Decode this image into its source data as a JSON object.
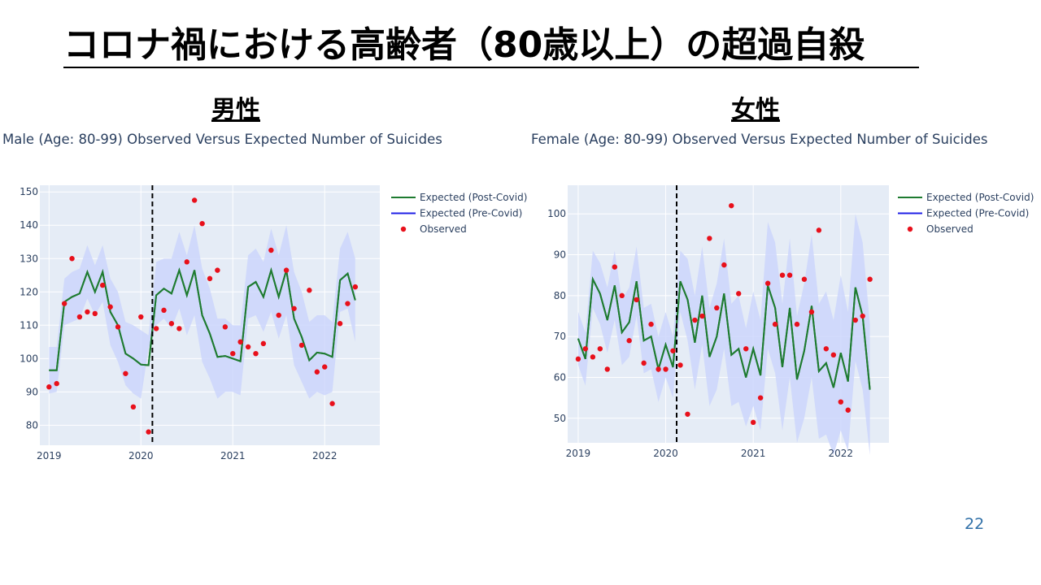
{
  "slide": {
    "title": "コロナ禍における高齢者（80歳以上）の超過自殺",
    "page_number": "22"
  },
  "sections": {
    "male_heading": "男性",
    "female_heading": "女性"
  },
  "colors": {
    "post_covid": "#1e7b30",
    "pre_covid": "#1f1fe6",
    "observed": "#e8101b",
    "band": "#cdd6fb",
    "plot_bg": "#e5ecf6",
    "grid": "#ffffff",
    "text": "#2a3f5f"
  },
  "chart_data": [
    {
      "type": "line",
      "title": "Male (Age: 80-99) Observed Versus Expected Number of Suicides",
      "xlabel": "",
      "ylabel": "",
      "x_range": [
        2018.9,
        2022.6
      ],
      "ylim": [
        74,
        152
      ],
      "x_ticks": [
        2019,
        2020,
        2021,
        2022
      ],
      "y_ticks": [
        80,
        90,
        100,
        110,
        120,
        130,
        140,
        150
      ],
      "cutoff_x": 2020.125,
      "grid": true,
      "legend_position": "right",
      "series": [
        {
          "name": "Expected (Post-Covid)",
          "kind": "line",
          "x": [
            2019,
            2019.083,
            2019.167,
            2019.25,
            2019.333,
            2019.417,
            2019.5,
            2019.583,
            2019.667,
            2019.75,
            2019.833,
            2019.917,
            2020,
            2020.083,
            2020.167,
            2020.25,
            2020.333,
            2020.417,
            2020.5,
            2020.583,
            2020.667,
            2020.75,
            2020.833,
            2020.917,
            2021,
            2021.083,
            2021.167,
            2021.25,
            2021.333,
            2021.417,
            2021.5,
            2021.583,
            2021.667,
            2021.75,
            2021.833,
            2021.917,
            2022,
            2022.083,
            2022.167,
            2022.25,
            2022.333
          ],
          "y": [
            96.5,
            96.5,
            117,
            118.5,
            119.5,
            126,
            120,
            126,
            114,
            110,
            101.5,
            100,
            98.2,
            98,
            119,
            121,
            119.5,
            126.5,
            119,
            126.5,
            113,
            107.5,
            100.5,
            100.8,
            100,
            99.2,
            121.5,
            123,
            118.5,
            126.5,
            118.5,
            126.5,
            112,
            106.5,
            99.5,
            101.8,
            101.5,
            100.5,
            123.5,
            125.5,
            117.5
          ]
        },
        {
          "name": "Expected (Pre-Covid)",
          "kind": "line",
          "x": [
            2019,
            2019.083,
            2019.167,
            2019.25,
            2019.333,
            2019.417,
            2019.5,
            2019.583,
            2019.667,
            2019.75,
            2019.833,
            2019.917,
            2020,
            2020.083
          ],
          "y": [
            96.5,
            96.5,
            117,
            118.5,
            119.5,
            126,
            120,
            126,
            114,
            110,
            101.5,
            100,
            98.2,
            98
          ]
        },
        {
          "name": "Observed",
          "kind": "markers",
          "x": [
            2019,
            2019.083,
            2019.167,
            2019.25,
            2019.333,
            2019.417,
            2019.5,
            2019.583,
            2019.667,
            2019.75,
            2019.833,
            2019.917,
            2020,
            2020.083,
            2020.167,
            2020.25,
            2020.333,
            2020.417,
            2020.5,
            2020.583,
            2020.667,
            2020.75,
            2020.833,
            2020.917,
            2021,
            2021.083,
            2021.167,
            2021.25,
            2021.333,
            2021.417,
            2021.5,
            2021.583,
            2021.667,
            2021.75,
            2021.833,
            2021.917,
            2022,
            2022.083,
            2022.167,
            2022.25,
            2022.333
          ],
          "y": [
            91.5,
            92.5,
            116.5,
            130,
            112.5,
            114,
            113.5,
            122,
            115.5,
            109.5,
            95.5,
            85.5,
            112.5,
            78,
            109,
            114.5,
            110.5,
            109,
            129,
            147.5,
            140.5,
            124,
            126.5,
            109.5,
            101.5,
            105,
            103.5,
            101.5,
            104.5,
            132.5,
            113,
            126.5,
            115,
            104,
            120.5,
            96,
            97.5,
            86.5,
            110.5,
            116.5,
            121.5
          ]
        }
      ],
      "band": {
        "x": [
          2019,
          2019.083,
          2019.167,
          2019.25,
          2019.333,
          2019.417,
          2019.5,
          2019.583,
          2019.667,
          2019.75,
          2019.833,
          2019.917,
          2020,
          2020.083,
          2020.167,
          2020.25,
          2020.333,
          2020.417,
          2020.5,
          2020.583,
          2020.667,
          2020.75,
          2020.833,
          2020.917,
          2021,
          2021.083,
          2021.167,
          2021.25,
          2021.333,
          2021.417,
          2021.5,
          2021.583,
          2021.667,
          2021.75,
          2021.833,
          2021.917,
          2022,
          2022.083,
          2022.167,
          2022.25,
          2022.333
        ],
        "lower": [
          89.5,
          90,
          110,
          111,
          112,
          118,
          113,
          117,
          104,
          99,
          92,
          89.5,
          88,
          103,
          110,
          112,
          109,
          115,
          107,
          113,
          99,
          94,
          88,
          90,
          90,
          89,
          112,
          113,
          108,
          114,
          106,
          113,
          98,
          93,
          88,
          90,
          89,
          90,
          114,
          115,
          105
        ],
        "upper": [
          103.5,
          103.5,
          124,
          126,
          127,
          134,
          128,
          134,
          124,
          120,
          111,
          110,
          108.5,
          107,
          129,
          130,
          130,
          138,
          131,
          140,
          127,
          121,
          112,
          112,
          110,
          110,
          131,
          133,
          129,
          139,
          131,
          140,
          126,
          120,
          111,
          113,
          113,
          111,
          133,
          138,
          130
        ]
      }
    },
    {
      "type": "line",
      "title": "Female (Age: 80-99) Observed Versus Expected Number of Suicides",
      "xlabel": "",
      "ylabel": "",
      "x_range": [
        2018.88,
        2022.55
      ],
      "ylim": [
        44,
        107
      ],
      "x_ticks": [
        2019,
        2020,
        2021,
        2022
      ],
      "y_ticks": [
        50,
        60,
        70,
        80,
        90,
        100
      ],
      "cutoff_x": 2020.125,
      "grid": true,
      "legend_position": "right",
      "series": [
        {
          "name": "Expected (Post-Covid)",
          "kind": "line",
          "x": [
            2019,
            2019.083,
            2019.167,
            2019.25,
            2019.333,
            2019.417,
            2019.5,
            2019.583,
            2019.667,
            2019.75,
            2019.833,
            2019.917,
            2020,
            2020.083,
            2020.167,
            2020.25,
            2020.333,
            2020.417,
            2020.5,
            2020.583,
            2020.667,
            2020.75,
            2020.833,
            2020.917,
            2021,
            2021.083,
            2021.167,
            2021.25,
            2021.333,
            2021.417,
            2021.5,
            2021.583,
            2021.667,
            2021.75,
            2021.833,
            2021.917,
            2022,
            2022.083,
            2022.167,
            2022.25,
            2022.333
          ],
          "y": [
            69.5,
            64.5,
            84,
            80.5,
            74,
            82.5,
            71,
            73.5,
            83.5,
            69,
            70,
            62,
            68,
            62.5,
            83.5,
            79,
            68.5,
            80,
            65,
            70,
            80.5,
            65.5,
            67,
            60,
            67,
            60.5,
            82.5,
            77,
            62.5,
            77,
            59.5,
            66.5,
            77.5,
            61.5,
            63.5,
            57.5,
            66,
            59,
            82,
            75,
            57
          ]
        },
        {
          "name": "Expected (Pre-Covid)",
          "kind": "line",
          "x": [
            2019,
            2019.083,
            2019.167,
            2019.25,
            2019.333,
            2019.417,
            2019.5,
            2019.583,
            2019.667,
            2019.75,
            2019.833,
            2019.917,
            2020,
            2020.083
          ],
          "y": [
            69.5,
            64.5,
            84,
            80.5,
            74,
            82.5,
            71,
            73.5,
            83.5,
            69,
            70,
            62,
            68,
            62.5
          ]
        },
        {
          "name": "Observed",
          "kind": "markers",
          "x": [
            2019,
            2019.083,
            2019.167,
            2019.25,
            2019.333,
            2019.417,
            2019.5,
            2019.583,
            2019.667,
            2019.75,
            2019.833,
            2019.917,
            2020,
            2020.083,
            2020.167,
            2020.25,
            2020.333,
            2020.417,
            2020.5,
            2020.583,
            2020.667,
            2020.75,
            2020.833,
            2020.917,
            2021,
            2021.083,
            2021.167,
            2021.25,
            2021.333,
            2021.417,
            2021.5,
            2021.583,
            2021.667,
            2021.75,
            2021.833,
            2021.917,
            2022,
            2022.083,
            2022.167,
            2022.25,
            2022.333
          ],
          "y": [
            64.5,
            67,
            65,
            67,
            62,
            87,
            80,
            69,
            79,
            63.5,
            73,
            62,
            62,
            66.5,
            63,
            51,
            74,
            75,
            94,
            77,
            87.5,
            102,
            80.5,
            67,
            49,
            55,
            83,
            73,
            85,
            85,
            73,
            84,
            76,
            96,
            67,
            65.5,
            54,
            52,
            74,
            75,
            84
          ]
        }
      ],
      "band": {
        "x": [
          2019,
          2019.083,
          2019.167,
          2019.25,
          2019.333,
          2019.417,
          2019.5,
          2019.583,
          2019.667,
          2019.75,
          2019.833,
          2019.917,
          2020,
          2020.083,
          2020.167,
          2020.25,
          2020.333,
          2020.417,
          2020.5,
          2020.583,
          2020.667,
          2020.75,
          2020.833,
          2020.917,
          2021,
          2021.083,
          2021.167,
          2021.25,
          2021.333,
          2021.417,
          2021.5,
          2021.583,
          2021.667,
          2021.75,
          2021.833,
          2021.917,
          2022,
          2022.083,
          2022.167,
          2022.25,
          2022.333
        ],
        "lower": [
          63,
          58,
          77,
          73,
          66,
          74,
          63,
          65,
          75,
          61,
          62,
          54,
          60,
          55,
          76,
          69,
          57,
          68,
          53,
          57,
          67,
          53,
          54,
          48,
          53,
          47,
          67,
          61,
          47,
          60,
          44,
          50,
          60,
          45,
          46,
          41,
          47,
          42,
          64,
          57,
          41
        ],
        "upper": [
          76,
          71,
          91,
          88,
          82,
          91,
          79,
          82,
          92,
          77,
          78,
          70,
          76,
          70,
          91,
          89,
          80,
          92,
          77,
          83,
          94,
          78,
          80,
          72,
          81,
          74,
          98,
          93,
          78,
          94,
          75,
          83,
          95,
          78,
          81,
          74,
          85,
          76,
          100,
          93,
          73
        ]
      }
    }
  ]
}
